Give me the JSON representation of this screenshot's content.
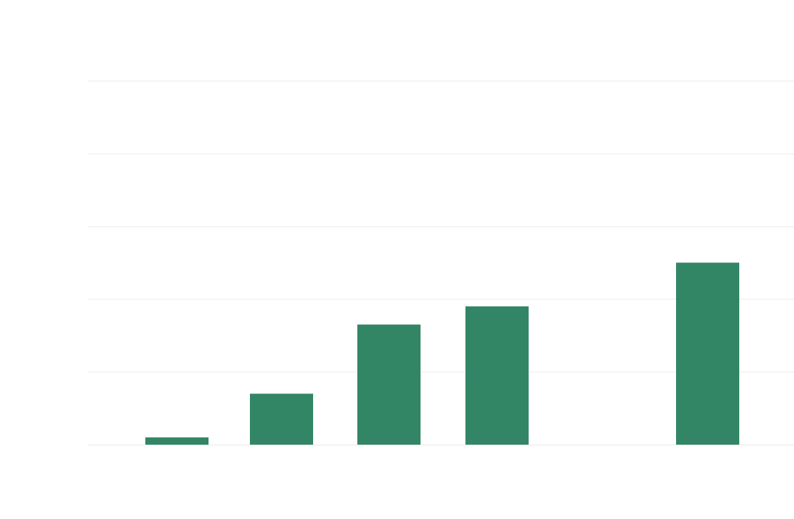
{
  "chart_data": {
    "type": "bar",
    "title": "",
    "xlabel": "",
    "ylabel": "",
    "categories": [
      "",
      "",
      "",
      "",
      "",
      ""
    ],
    "values": [
      2,
      14,
      33,
      38,
      0,
      50
    ],
    "ylim": [
      0,
      100
    ],
    "yticks": [
      0,
      20,
      40,
      60,
      80,
      100
    ],
    "grid": true,
    "legend": "none",
    "colors": {
      "bar": "#328665",
      "grid": "#ececec",
      "background": "#ffffff"
    }
  }
}
